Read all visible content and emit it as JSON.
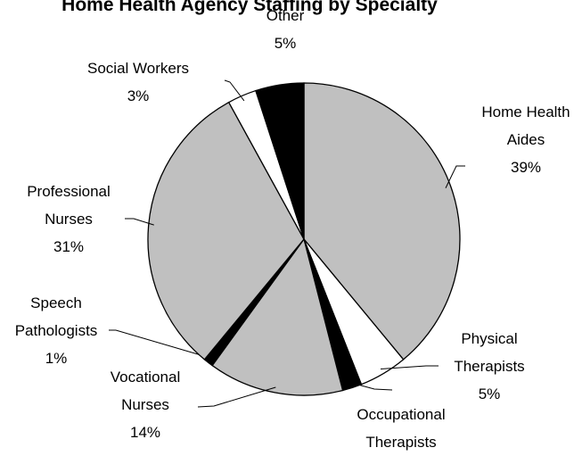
{
  "chart_data": {
    "type": "pie",
    "title": "Home Health Agency Staffing by Specialty",
    "categories": [
      "Home Health Aides",
      "Physical Therapists",
      "Occupational Therapists",
      "Vocational Nurses",
      "Speech Pathologists",
      "Professional Nurses",
      "Social Workers",
      "Other"
    ],
    "values": [
      39,
      5,
      2,
      14,
      1,
      31,
      3,
      5
    ],
    "value_labels": [
      "39%",
      "5%",
      null,
      "14%",
      "1%",
      "31%",
      "3%",
      "5%"
    ],
    "colors": [
      "#c0c0c0",
      "#ffffff",
      "#000000",
      "#c0c0c0",
      "#000000",
      "#c0c0c0",
      "#ffffff",
      "#000000"
    ]
  }
}
